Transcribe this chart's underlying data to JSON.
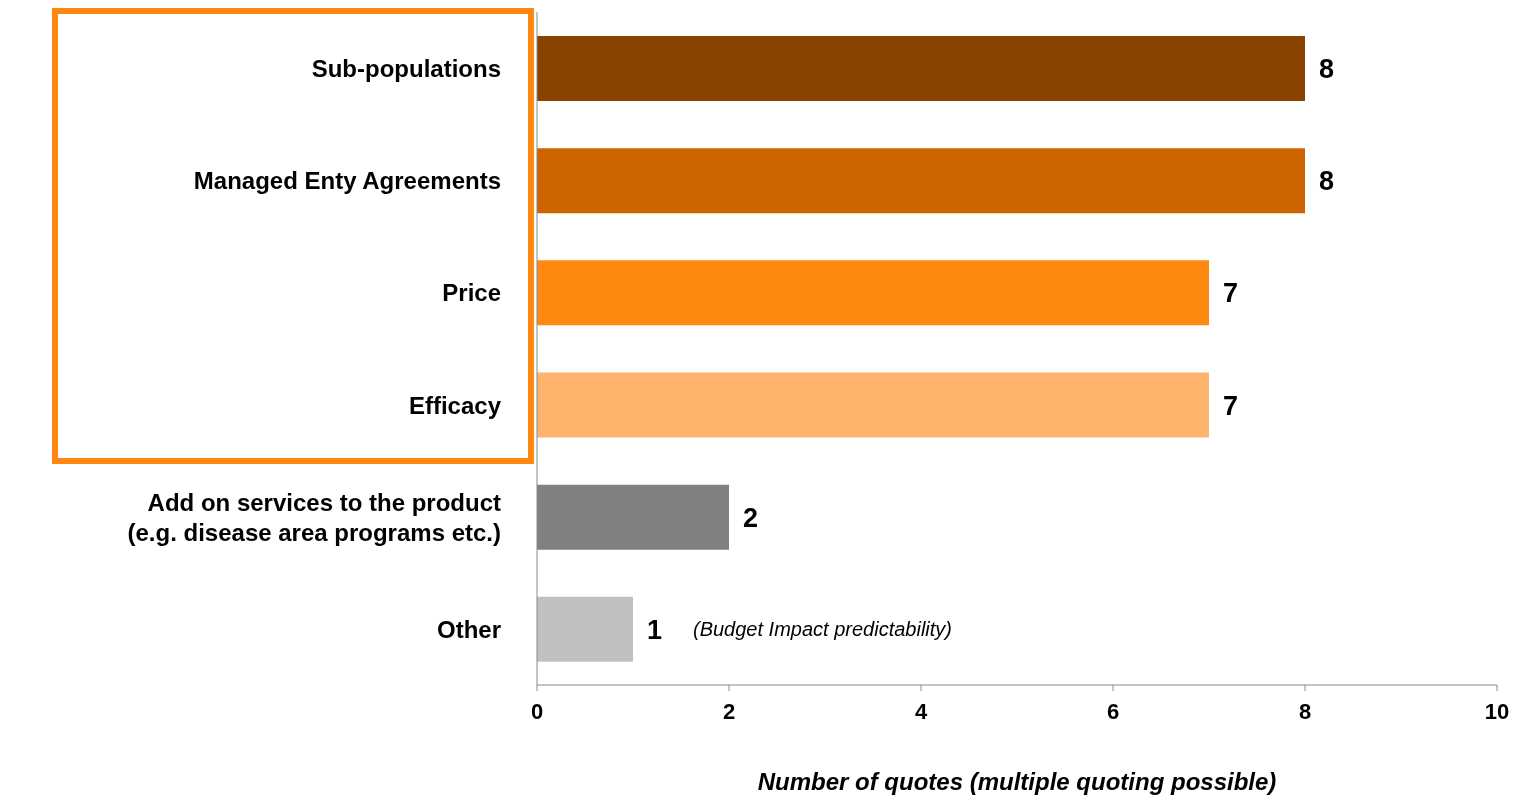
{
  "chart_data": {
    "type": "bar",
    "orientation": "horizontal",
    "categories": [
      "Sub-populations",
      "Managed Enty Agreements",
      "Price",
      "Efficacy",
      "Add on services to the product (e.g. disease area programs etc.)",
      "Other"
    ],
    "values": [
      8,
      8,
      7,
      7,
      2,
      1
    ],
    "colors": [
      "#8a4200",
      "#cc6400",
      "#ff8811",
      "#ffb46e",
      "#808080",
      "#c0c0c0"
    ],
    "xlim": [
      0,
      10
    ],
    "xticks": [
      0,
      2,
      4,
      6,
      8,
      10
    ],
    "xlabel": "Number of quotes (multiple quoting possible)",
    "data_labels": true,
    "grid": false,
    "legend": false,
    "annotations": [
      {
        "text": "(Budget Impact predictability)",
        "x": 1,
        "y": "Other"
      }
    ]
  }
}
